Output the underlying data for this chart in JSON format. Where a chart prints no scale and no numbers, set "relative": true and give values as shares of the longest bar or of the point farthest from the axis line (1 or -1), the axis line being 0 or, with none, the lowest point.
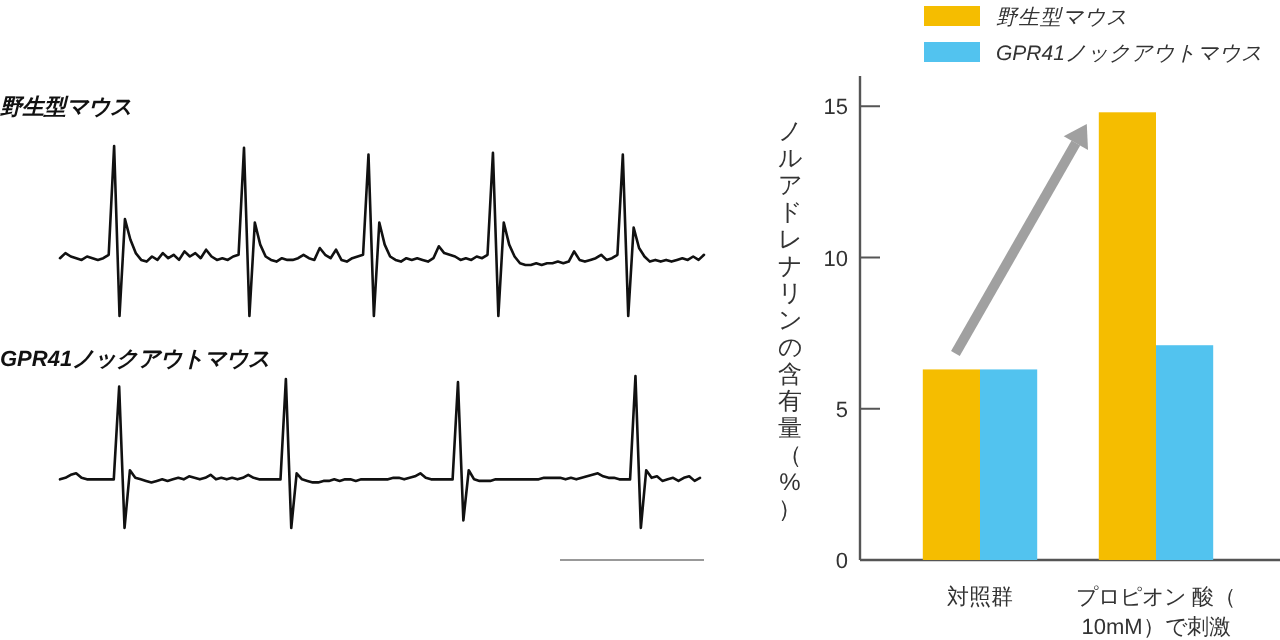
{
  "chart_data": [
    {
      "type": "line",
      "title": "野生型マウス",
      "relative": true,
      "categories": [
        null,
        null,
        null,
        null,
        null,
        null,
        null,
        null,
        null,
        null,
        null,
        null,
        null,
        null,
        null,
        null,
        null,
        null,
        null,
        null,
        null,
        null,
        null,
        null,
        null,
        null,
        null,
        null,
        null,
        null,
        null,
        null,
        null,
        null,
        null,
        null,
        null,
        null,
        null,
        null,
        null,
        null,
        null,
        null,
        null,
        null,
        null,
        null,
        null,
        null,
        null,
        null,
        null,
        null,
        null,
        null,
        null,
        null,
        null,
        null,
        null,
        null,
        null,
        null,
        null,
        null,
        null,
        null,
        null,
        null,
        null,
        null,
        null,
        null,
        null,
        null,
        null,
        null,
        null,
        null,
        null,
        null,
        null,
        null,
        null,
        null,
        null,
        null,
        null,
        null,
        null,
        null,
        null,
        null,
        null,
        null,
        null,
        null,
        null,
        null,
        null,
        null,
        null,
        null,
        null,
        null,
        null,
        null,
        null,
        null,
        null,
        null,
        null,
        null,
        null,
        null,
        null,
        null,
        null,
        null
      ],
      "series": [
        {
          "color": "#111111",
          "values": [
            0.34,
            0.37,
            0.35,
            0.34,
            0.33,
            0.35,
            0.34,
            0.33,
            0.34,
            0.36,
            1.0,
            0.0,
            0.57,
            0.45,
            0.37,
            0.33,
            0.32,
            0.35,
            0.33,
            0.37,
            0.34,
            0.36,
            0.33,
            0.38,
            0.35,
            0.37,
            0.34,
            0.39,
            0.35,
            0.33,
            0.34,
            0.33,
            0.35,
            0.36,
            0.99,
            0.0,
            0.55,
            0.42,
            0.35,
            0.33,
            0.32,
            0.34,
            0.33,
            0.33,
            0.34,
            0.36,
            0.34,
            0.33,
            0.4,
            0.36,
            0.34,
            0.39,
            0.33,
            0.32,
            0.34,
            0.35,
            0.36,
            0.95,
            0.0,
            0.55,
            0.42,
            0.35,
            0.33,
            0.32,
            0.34,
            0.33,
            0.34,
            0.33,
            0.32,
            0.34,
            0.41,
            0.37,
            0.36,
            0.35,
            0.33,
            0.34,
            0.33,
            0.35,
            0.34,
            0.36,
            0.96,
            0.0,
            0.55,
            0.42,
            0.35,
            0.31,
            0.3,
            0.3,
            0.31,
            0.3,
            0.31,
            0.31,
            0.32,
            0.31,
            0.32,
            0.38,
            0.33,
            0.32,
            0.33,
            0.34,
            0.36,
            0.33,
            0.34,
            0.36,
            0.95,
            0.0,
            0.52,
            0.4,
            0.35,
            0.32,
            0.33,
            0.32,
            0.33,
            0.32,
            0.33,
            0.34,
            0.33,
            0.35,
            0.33,
            0.36
          ]
        }
      ]
    },
    {
      "type": "line",
      "title": "GPR41ノックアウトマウス",
      "relative": true,
      "categories": [
        null,
        null,
        null,
        null,
        null,
        null,
        null,
        null,
        null,
        null,
        null,
        null,
        null,
        null,
        null,
        null,
        null,
        null,
        null,
        null,
        null,
        null,
        null,
        null,
        null,
        null,
        null,
        null,
        null,
        null,
        null,
        null,
        null,
        null,
        null,
        null,
        null,
        null,
        null,
        null,
        null,
        null,
        null,
        null,
        null,
        null,
        null,
        null,
        null,
        null,
        null,
        null,
        null,
        null,
        null,
        null,
        null,
        null,
        null,
        null,
        null,
        null,
        null,
        null,
        null,
        null,
        null,
        null,
        null,
        null,
        null,
        null,
        null,
        null,
        null,
        null,
        null,
        null,
        null,
        null,
        null,
        null,
        null,
        null,
        null,
        null,
        null,
        null,
        null,
        null,
        null,
        null,
        null,
        null,
        null,
        null,
        null,
        null,
        null,
        null,
        null,
        null,
        null,
        null,
        null,
        null,
        null,
        null,
        null,
        null,
        null,
        null,
        null,
        null,
        null,
        null,
        null,
        null,
        null,
        null
      ],
      "series": [
        {
          "color": "#111111",
          "values": [
            0.32,
            0.33,
            0.35,
            0.36,
            0.33,
            0.32,
            0.32,
            0.32,
            0.32,
            0.32,
            0.32,
            0.93,
            0.0,
            0.38,
            0.33,
            0.32,
            0.31,
            0.3,
            0.31,
            0.32,
            0.31,
            0.32,
            0.33,
            0.32,
            0.34,
            0.33,
            0.32,
            0.33,
            0.35,
            0.32,
            0.33,
            0.32,
            0.33,
            0.32,
            0.33,
            0.35,
            0.33,
            0.32,
            0.32,
            0.32,
            0.32,
            0.32,
            0.98,
            0.0,
            0.36,
            0.32,
            0.31,
            0.3,
            0.3,
            0.31,
            0.31,
            0.32,
            0.31,
            0.32,
            0.32,
            0.31,
            0.32,
            0.32,
            0.32,
            0.32,
            0.32,
            0.32,
            0.33,
            0.33,
            0.32,
            0.33,
            0.34,
            0.36,
            0.33,
            0.32,
            0.32,
            0.32,
            0.32,
            0.32,
            0.96,
            0.05,
            0.38,
            0.32,
            0.31,
            0.31,
            0.31,
            0.32,
            0.32,
            0.32,
            0.32,
            0.32,
            0.32,
            0.32,
            0.32,
            0.32,
            0.33,
            0.33,
            0.33,
            0.33,
            0.32,
            0.33,
            0.32,
            0.33,
            0.34,
            0.35,
            0.36,
            0.34,
            0.33,
            0.33,
            0.32,
            0.32,
            0.32,
            1.0,
            0.0,
            0.38,
            0.33,
            0.34,
            0.31,
            0.32,
            0.33,
            0.31,
            0.33,
            0.34,
            0.31,
            0.33
          ]
        }
      ]
    },
    {
      "type": "bar",
      "ylabel": "ノルアドレナリンの含有量（%）",
      "categories": [
        "対照群",
        "プロピオン 酸（10mM）で刺激"
      ],
      "series": [
        {
          "name": "野生型マウス",
          "color": "#f5bd00",
          "values": [
            6.3,
            14.8
          ]
        },
        {
          "name": "GPR41ノックアウトマウス",
          "color": "#52c3ef",
          "values": [
            6.3,
            7.1
          ]
        }
      ],
      "ylim": [
        0,
        16
      ],
      "yticks": [
        0,
        5,
        10,
        15
      ],
      "legend": "top"
    }
  ]
}
